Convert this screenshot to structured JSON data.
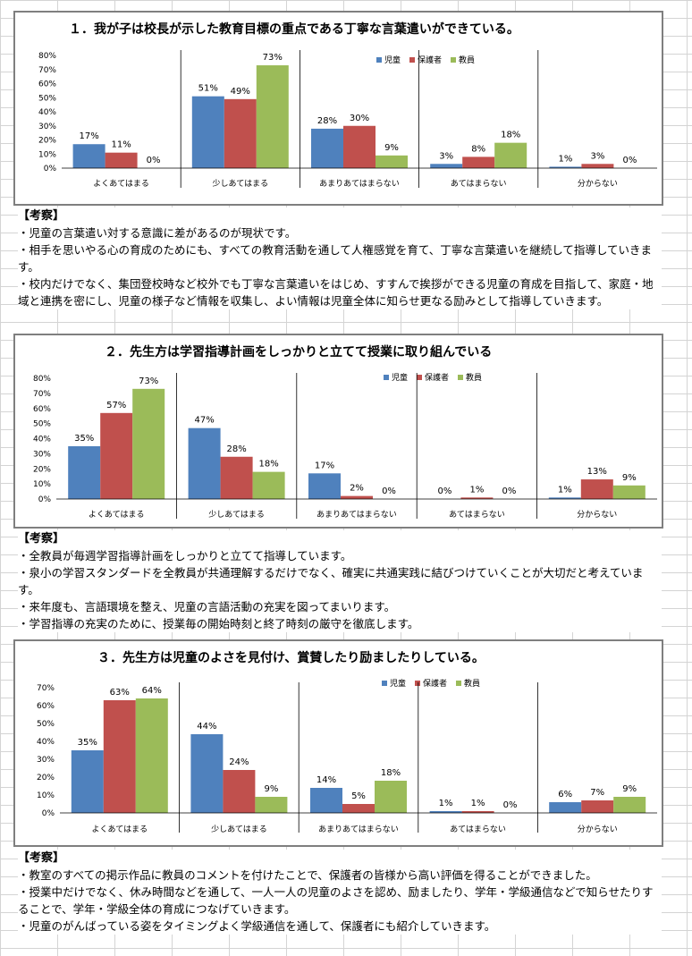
{
  "colors": {
    "child": "#4f81bd",
    "guardian": "#c0504d",
    "staff": "#9bbb59"
  },
  "charts": [
    {
      "title": "１．我が子は校長が示した教育目標の重点である丁寧な言葉遣いができている。",
      "legend": [
        "児童",
        "保護者",
        "教員"
      ]
    },
    {
      "title": "２．先生方は学習指導計画をしっかりと立てて授業に取り組んでいる",
      "legend": [
        "児童",
        "保護者",
        "教員"
      ]
    },
    {
      "title": "３．先生方は児童のよさを見付け、賞賛したり励ましたりしている。",
      "legend": [
        "児童",
        "保護者",
        "教員"
      ]
    }
  ],
  "chart_data": [
    {
      "type": "bar",
      "title": "１．我が子は校長が示した教育目標の重点である丁寧な言葉遣いができている。",
      "categories": [
        "よくあてはまる",
        "少しあてはまる",
        "あまりあてはまらない",
        "あてはまらない",
        "分からない"
      ],
      "series": [
        {
          "name": "児童",
          "values": [
            17,
            51,
            28,
            3,
            1
          ]
        },
        {
          "name": "保護者",
          "values": [
            11,
            49,
            30,
            8,
            3
          ]
        },
        {
          "name": "教員",
          "values": [
            0,
            73,
            9,
            18,
            0
          ]
        }
      ],
      "ylim": [
        0,
        80
      ],
      "yticks": [
        "0%",
        "10%",
        "20%",
        "30%",
        "40%",
        "50%",
        "60%",
        "70%",
        "80%"
      ],
      "value_labels": [
        [
          "17%",
          "51%",
          "28%",
          "3%",
          "1%"
        ],
        [
          "11%",
          "49%",
          "30%",
          "8%",
          "3%"
        ],
        [
          "0%",
          "73%",
          "9%",
          "18%",
          "0%"
        ]
      ],
      "legend_position": "top-right",
      "grid": false
    },
    {
      "type": "bar",
      "title": "２．先生方は学習指導計画をしっかりと立てて授業に取り組んでいる",
      "categories": [
        "よくあてはまる",
        "少しあてはまる",
        "あまりあてはまらない",
        "あてはまらない",
        "分からない"
      ],
      "series": [
        {
          "name": "児童",
          "values": [
            35,
            47,
            17,
            0,
            1
          ]
        },
        {
          "name": "保護者",
          "values": [
            57,
            28,
            2,
            1,
            13
          ]
        },
        {
          "name": "教員",
          "values": [
            73,
            18,
            0,
            0,
            9
          ]
        }
      ],
      "ylim": [
        0,
        80
      ],
      "yticks": [
        "0%",
        "10%",
        "20%",
        "30%",
        "40%",
        "50%",
        "60%",
        "70%",
        "80%"
      ],
      "value_labels": [
        [
          "35%",
          "47%",
          "17%",
          "0%",
          "1%"
        ],
        [
          "57%",
          "28%",
          "2%",
          "1%",
          "13%"
        ],
        [
          "73%",
          "18%",
          "0%",
          "0%",
          "9%"
        ]
      ],
      "legend_position": "top-right",
      "grid": false
    },
    {
      "type": "bar",
      "title": "３．先生方は児童のよさを見付け、賞賛したり励ましたりしている。",
      "categories": [
        "よくあてはまる",
        "少しあてはまる",
        "あまりあてはまらない",
        "あてはまらない",
        "分からない"
      ],
      "series": [
        {
          "name": "児童",
          "values": [
            35,
            44,
            14,
            1,
            6
          ]
        },
        {
          "name": "保護者",
          "values": [
            63,
            24,
            5,
            1,
            7
          ]
        },
        {
          "name": "教員",
          "values": [
            64,
            9,
            18,
            0,
            9
          ]
        }
      ],
      "ylim": [
        0,
        70
      ],
      "yticks": [
        "0%",
        "10%",
        "20%",
        "30%",
        "40%",
        "50%",
        "60%",
        "70%"
      ],
      "value_labels": [
        [
          "35%",
          "44%",
          "14%",
          "1%",
          "6%"
        ],
        [
          "63%",
          "24%",
          "5%",
          "1%",
          "7%"
        ],
        [
          "64%",
          "9%",
          "18%",
          "0%",
          "9%"
        ]
      ],
      "legend_position": "top-right",
      "grid": false
    }
  ],
  "commentary": [
    {
      "heading": "【考察】",
      "lines": [
        "・児童の言葉遣い対する意識に差があるのが現状です。",
        "・相手を思いやる心の育成のためにも、すべての教育活動を通して人権感覚を育て、丁寧な言葉遣いを継続して指導していきます。",
        "・校内だけでなく、集団登校時など校外でも丁寧な言葉遣いをはじめ、すすんで挨拶ができる児童の育成を目指して、家庭・地域と連携を密にし、児童の様子など情報を収集し、よい情報は児童全体に知らせ更なる励みとして指導していきます。"
      ]
    },
    {
      "heading": "【考察】",
      "lines": [
        "・全教員が毎週学習指導計画をしっかりと立てて指導しています。",
        "・泉小の学習スタンダードを全教員が共通理解するだけでなく、確実に共通実践に結びつけていくことが大切だと考えています。",
        "・来年度も、言語環境を整え、児童の言語活動の充実を図ってまいります。",
        "・学習指導の充実のために、授業毎の開始時刻と終了時刻の厳守を徹底します。"
      ]
    },
    {
      "heading": "【考察】",
      "lines": [
        "・教室のすべての掲示作品に教員のコメントを付けたことで、保護者の皆様から高い評価を得ることができました。",
        "・授業中だけでなく、休み時間などを通して、一人一人の児童のよさを認め、励ましたり、学年・学級通信などで知らせたりすることで、学年・学級全体の育成につなげていきます。",
        "・児童のがんばっている姿をタイミングよく学級通信を通して、保護者にも紹介していきます。"
      ]
    }
  ]
}
